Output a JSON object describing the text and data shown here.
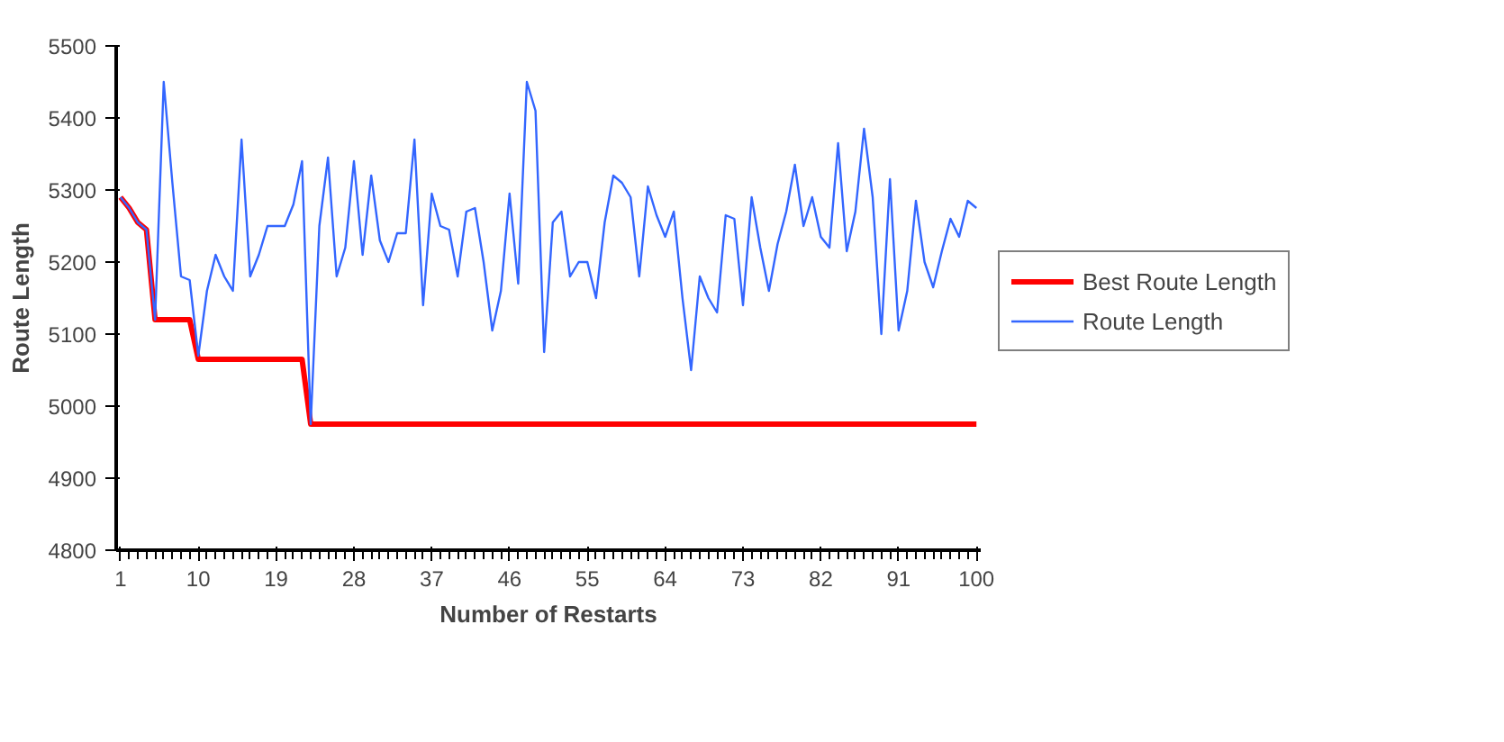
{
  "chart_data": {
    "type": "line",
    "xlabel": "Number of Restarts",
    "ylabel": "Route Length",
    "x": [
      1,
      2,
      3,
      4,
      5,
      6,
      7,
      8,
      9,
      10,
      11,
      12,
      13,
      14,
      15,
      16,
      17,
      18,
      19,
      20,
      21,
      22,
      23,
      24,
      25,
      26,
      27,
      28,
      29,
      30,
      31,
      32,
      33,
      34,
      35,
      36,
      37,
      38,
      39,
      40,
      41,
      42,
      43,
      44,
      45,
      46,
      47,
      48,
      49,
      50,
      51,
      52,
      53,
      54,
      55,
      56,
      57,
      58,
      59,
      60,
      61,
      62,
      63,
      64,
      65,
      66,
      67,
      68,
      69,
      70,
      71,
      72,
      73,
      74,
      75,
      76,
      77,
      78,
      79,
      80,
      81,
      82,
      83,
      84,
      85,
      86,
      87,
      88,
      89,
      90,
      91,
      92,
      93,
      94,
      95,
      96,
      97,
      98,
      99,
      100
    ],
    "series": [
      {
        "name": "Best Route Length",
        "color": "#ff0000",
        "values": [
          5290,
          5275,
          5255,
          5245,
          5120,
          5120,
          5120,
          5120,
          5120,
          5065,
          5065,
          5065,
          5065,
          5065,
          5065,
          5065,
          5065,
          5065,
          5065,
          5065,
          5065,
          5065,
          4975,
          4975,
          4975,
          4975,
          4975,
          4975,
          4975,
          4975,
          4975,
          4975,
          4975,
          4975,
          4975,
          4975,
          4975,
          4975,
          4975,
          4975,
          4975,
          4975,
          4975,
          4975,
          4975,
          4975,
          4975,
          4975,
          4975,
          4975,
          4975,
          4975,
          4975,
          4975,
          4975,
          4975,
          4975,
          4975,
          4975,
          4975,
          4975,
          4975,
          4975,
          4975,
          4975,
          4975,
          4975,
          4975,
          4975,
          4975,
          4975,
          4975,
          4975,
          4975,
          4975,
          4975,
          4975,
          4975,
          4975,
          4975,
          4975,
          4975,
          4975,
          4975,
          4975,
          4975,
          4975,
          4975,
          4975,
          4975,
          4975,
          4975,
          4975,
          4975,
          4975,
          4975,
          4975,
          4975,
          4975,
          4975
        ]
      },
      {
        "name": "Route Length",
        "color": "#3366ff",
        "values": [
          5290,
          5275,
          5255,
          5245,
          5120,
          5450,
          5310,
          5180,
          5175,
          5070,
          5160,
          5210,
          5180,
          5160,
          5370,
          5180,
          5210,
          5250,
          5250,
          5250,
          5280,
          5340,
          4975,
          5250,
          5345,
          5180,
          5220,
          5340,
          5210,
          5320,
          5230,
          5200,
          5240,
          5240,
          5370,
          5140,
          5295,
          5250,
          5245,
          5180,
          5270,
          5275,
          5200,
          5105,
          5160,
          5295,
          5170,
          5450,
          5410,
          5075,
          5255,
          5270,
          5180,
          5200,
          5200,
          5150,
          5255,
          5320,
          5310,
          5290,
          5180,
          5305,
          5265,
          5235,
          5270,
          5150,
          5050,
          5180,
          5150,
          5130,
          5265,
          5260,
          5140,
          5290,
          5220,
          5160,
          5225,
          5270,
          5335,
          5250,
          5290,
          5235,
          5220,
          5365,
          5215,
          5270,
          5385,
          5290,
          5100,
          5315,
          5105,
          5160,
          5285,
          5200,
          5165,
          5215,
          5260,
          5235,
          5285,
          5275
        ]
      }
    ],
    "xlim": [
      0.5,
      100.5
    ],
    "xticks": [
      1,
      10,
      19,
      28,
      37,
      46,
      55,
      64,
      73,
      82,
      91,
      100
    ],
    "ylim": [
      4800,
      5500
    ],
    "yticks": [
      4800,
      4900,
      5000,
      5100,
      5200,
      5300,
      5400,
      5500
    ],
    "grid": false,
    "legend": "right",
    "marker": "none",
    "line_style": "solid"
  }
}
